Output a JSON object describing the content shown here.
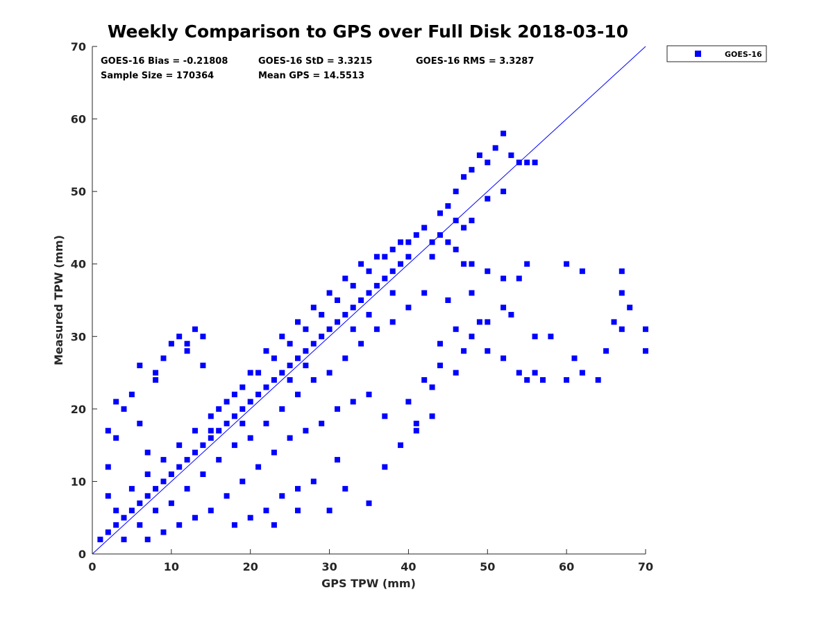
{
  "chart_data": {
    "type": "scatter",
    "title": "Weekly Comparison to GPS over Full Disk 2018-03-10",
    "xlabel": "GPS TPW (mm)",
    "ylabel": "Measured TPW (mm)",
    "xlim": [
      0,
      70
    ],
    "ylim": [
      0,
      70
    ],
    "xticks": [
      0,
      10,
      20,
      30,
      40,
      50,
      60,
      70
    ],
    "yticks": [
      0,
      10,
      20,
      30,
      40,
      50,
      60,
      70
    ],
    "grid": false,
    "legend_position": "outside-top-right",
    "color": "#0000ff",
    "stats": [
      "GOES-16 Bias = -0.21808",
      "GOES-16 StD = 3.3215",
      "GOES-16 RMS = 3.3287",
      "Sample Size = 170364",
      "Mean GPS = 14.5513"
    ],
    "reference_line": {
      "from": [
        0,
        0
      ],
      "to": [
        70,
        70
      ]
    },
    "series": [
      {
        "name": "GOES-16",
        "marker": "square",
        "points": [
          [
            1,
            2
          ],
          [
            2,
            3
          ],
          [
            3,
            4
          ],
          [
            4,
            5
          ],
          [
            5,
            6
          ],
          [
            6,
            7
          ],
          [
            7,
            8
          ],
          [
            8,
            9
          ],
          [
            9,
            10
          ],
          [
            10,
            11
          ],
          [
            11,
            12
          ],
          [
            12,
            13
          ],
          [
            13,
            14
          ],
          [
            14,
            15
          ],
          [
            15,
            16
          ],
          [
            16,
            17
          ],
          [
            17,
            18
          ],
          [
            18,
            19
          ],
          [
            19,
            20
          ],
          [
            20,
            21
          ],
          [
            21,
            22
          ],
          [
            22,
            23
          ],
          [
            23,
            24
          ],
          [
            24,
            25
          ],
          [
            25,
            26
          ],
          [
            26,
            27
          ],
          [
            27,
            28
          ],
          [
            28,
            29
          ],
          [
            29,
            30
          ],
          [
            30,
            31
          ],
          [
            31,
            32
          ],
          [
            32,
            33
          ],
          [
            33,
            34
          ],
          [
            34,
            35
          ],
          [
            35,
            36
          ],
          [
            36,
            37
          ],
          [
            37,
            38
          ],
          [
            38,
            39
          ],
          [
            39,
            40
          ],
          [
            40,
            41
          ],
          [
            3,
            6
          ],
          [
            5,
            9
          ],
          [
            7,
            11
          ],
          [
            9,
            13
          ],
          [
            11,
            15
          ],
          [
            13,
            17
          ],
          [
            15,
            19
          ],
          [
            17,
            21
          ],
          [
            19,
            23
          ],
          [
            21,
            25
          ],
          [
            23,
            27
          ],
          [
            25,
            29
          ],
          [
            27,
            31
          ],
          [
            29,
            33
          ],
          [
            31,
            35
          ],
          [
            33,
            37
          ],
          [
            35,
            39
          ],
          [
            37,
            41
          ],
          [
            39,
            43
          ],
          [
            41,
            44
          ],
          [
            4,
            2
          ],
          [
            6,
            4
          ],
          [
            8,
            6
          ],
          [
            10,
            7
          ],
          [
            12,
            9
          ],
          [
            14,
            11
          ],
          [
            16,
            13
          ],
          [
            18,
            15
          ],
          [
            20,
            16
          ],
          [
            22,
            18
          ],
          [
            24,
            20
          ],
          [
            26,
            22
          ],
          [
            28,
            24
          ],
          [
            30,
            25
          ],
          [
            32,
            27
          ],
          [
            34,
            29
          ],
          [
            36,
            31
          ],
          [
            38,
            32
          ],
          [
            40,
            34
          ],
          [
            42,
            36
          ],
          [
            2,
            8
          ],
          [
            2,
            12
          ],
          [
            3,
            16
          ],
          [
            4,
            20
          ],
          [
            5,
            22
          ],
          [
            6,
            18
          ],
          [
            7,
            14
          ],
          [
            8,
            24
          ],
          [
            9,
            27
          ],
          [
            10,
            29
          ],
          [
            11,
            30
          ],
          [
            12,
            28
          ],
          [
            13,
            31
          ],
          [
            14,
            30
          ],
          [
            2,
            17
          ],
          [
            3,
            21
          ],
          [
            6,
            26
          ],
          [
            8,
            25
          ],
          [
            12,
            29
          ],
          [
            14,
            26
          ],
          [
            16,
            20
          ],
          [
            18,
            22
          ],
          [
            20,
            25
          ],
          [
            22,
            28
          ],
          [
            24,
            30
          ],
          [
            26,
            32
          ],
          [
            28,
            34
          ],
          [
            30,
            36
          ],
          [
            32,
            38
          ],
          [
            34,
            40
          ],
          [
            36,
            41
          ],
          [
            38,
            42
          ],
          [
            40,
            43
          ],
          [
            42,
            45
          ],
          [
            44,
            47
          ],
          [
            45,
            48
          ],
          [
            46,
            50
          ],
          [
            47,
            52
          ],
          [
            48,
            53
          ],
          [
            49,
            55
          ],
          [
            50,
            54
          ],
          [
            51,
            56
          ],
          [
            52,
            58
          ],
          [
            53,
            55
          ],
          [
            54,
            54
          ],
          [
            55,
            54
          ],
          [
            56,
            54
          ],
          [
            52,
            50
          ],
          [
            50,
            49
          ],
          [
            48,
            46
          ],
          [
            46,
            46
          ],
          [
            44,
            44
          ],
          [
            43,
            43
          ],
          [
            46,
            42
          ],
          [
            48,
            40
          ],
          [
            50,
            39
          ],
          [
            52,
            38
          ],
          [
            45,
            35
          ],
          [
            46,
            31
          ],
          [
            44,
            26
          ],
          [
            41,
            18
          ],
          [
            41,
            17
          ],
          [
            43,
            19
          ],
          [
            43,
            23
          ],
          [
            46,
            25
          ],
          [
            47,
            28
          ],
          [
            48,
            30
          ],
          [
            49,
            32
          ],
          [
            50,
            28
          ],
          [
            52,
            27
          ],
          [
            54,
            25
          ],
          [
            55,
            24
          ],
          [
            56,
            25
          ],
          [
            57,
            24
          ],
          [
            58,
            30
          ],
          [
            60,
            24
          ],
          [
            61,
            27
          ],
          [
            62,
            25
          ],
          [
            64,
            24
          ],
          [
            65,
            28
          ],
          [
            66,
            32
          ],
          [
            67,
            31
          ],
          [
            68,
            34
          ],
          [
            70,
            31
          ],
          [
            70,
            28
          ],
          [
            67,
            36
          ],
          [
            67,
            39
          ],
          [
            62,
            39
          ],
          [
            60,
            40
          ],
          [
            56,
            30
          ],
          [
            55,
            40
          ],
          [
            54,
            38
          ],
          [
            53,
            33
          ],
          [
            52,
            34
          ],
          [
            47,
            40
          ],
          [
            48,
            36
          ],
          [
            50,
            32
          ],
          [
            44,
            29
          ],
          [
            42,
            24
          ],
          [
            40,
            21
          ],
          [
            37,
            19
          ],
          [
            35,
            22
          ],
          [
            33,
            21
          ],
          [
            31,
            20
          ],
          [
            29,
            18
          ],
          [
            27,
            17
          ],
          [
            25,
            16
          ],
          [
            23,
            14
          ],
          [
            21,
            12
          ],
          [
            19,
            10
          ],
          [
            17,
            8
          ],
          [
            15,
            6
          ],
          [
            13,
            5
          ],
          [
            11,
            4
          ],
          [
            9,
            3
          ],
          [
            7,
            2
          ],
          [
            31,
            13
          ],
          [
            28,
            10
          ],
          [
            26,
            9
          ],
          [
            24,
            8
          ],
          [
            22,
            6
          ],
          [
            20,
            5
          ],
          [
            18,
            4
          ],
          [
            23,
            4
          ],
          [
            26,
            6
          ],
          [
            30,
            6
          ],
          [
            35,
            7
          ],
          [
            32,
            9
          ],
          [
            37,
            12
          ],
          [
            39,
            15
          ],
          [
            15,
            17
          ],
          [
            19,
            18
          ],
          [
            25,
            24
          ],
          [
            35,
            33
          ],
          [
            45,
            43
          ],
          [
            27,
            26
          ],
          [
            33,
            31
          ],
          [
            38,
            36
          ],
          [
            43,
            41
          ],
          [
            47,
            45
          ]
        ]
      }
    ]
  }
}
